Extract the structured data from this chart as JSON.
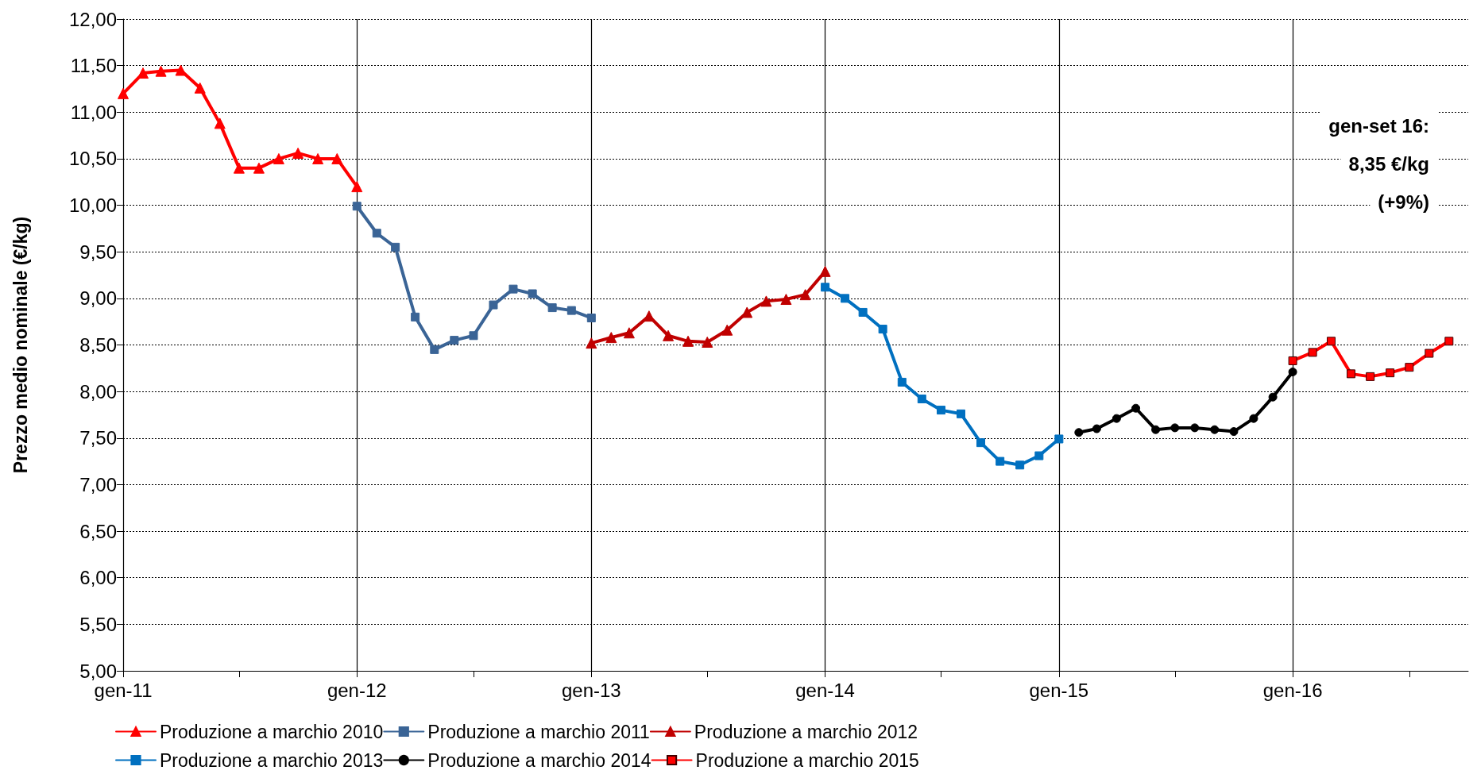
{
  "chart_data": {
    "type": "line",
    "ylabel": "Prezzo medio nominale (€/kg)",
    "xlim": [
      "2011-01",
      "2016-10"
    ],
    "xticks": [
      {
        "value": "2011-01",
        "label": "gen-11"
      },
      {
        "value": "2011-07",
        "label": null
      },
      {
        "value": "2012-01",
        "label": "gen-12"
      },
      {
        "value": "2012-07",
        "label": null
      },
      {
        "value": "2013-01",
        "label": "gen-13"
      },
      {
        "value": "2013-07",
        "label": null
      },
      {
        "value": "2014-01",
        "label": "gen-14"
      },
      {
        "value": "2014-07",
        "label": null
      },
      {
        "value": "2015-01",
        "label": "gen-15"
      },
      {
        "value": "2015-07",
        "label": null
      },
      {
        "value": "2016-01",
        "label": "gen-16"
      },
      {
        "value": "2016-07",
        "label": null
      }
    ],
    "ylim": [
      5,
      12
    ],
    "yticks": [
      {
        "value": 5,
        "label": "5,00"
      },
      {
        "value": 5.5,
        "label": "5,50"
      },
      {
        "value": 6,
        "label": "6,00"
      },
      {
        "value": 6.5,
        "label": "6,50"
      },
      {
        "value": 7,
        "label": "7,00"
      },
      {
        "value": 7.5,
        "label": "7,50"
      },
      {
        "value": 8,
        "label": "8,00"
      },
      {
        "value": 8.5,
        "label": "8,50"
      },
      {
        "value": 9,
        "label": "9,00"
      },
      {
        "value": 9.5,
        "label": "9,50"
      },
      {
        "value": 10,
        "label": "10,00"
      },
      {
        "value": 10.5,
        "label": "10,50"
      },
      {
        "value": 11,
        "label": "11,00"
      },
      {
        "value": 11.5,
        "label": "11,50"
      },
      {
        "value": 12,
        "label": "12,00"
      }
    ],
    "grid": true,
    "legend": "bottom",
    "line_style": "solid",
    "annotations": [
      "gen-set 16:",
      "8,35 €/kg",
      "(+9%)"
    ],
    "series": [
      {
        "name": "Produzione a marchio 2010",
        "color": "#ff0000",
        "marker": "triangle",
        "x": [
          "2011-01",
          "2011-02",
          "2011-03",
          "2011-04",
          "2011-05",
          "2011-06",
          "2011-07",
          "2011-08",
          "2011-09",
          "2011-10",
          "2011-11",
          "2011-12",
          "2012-01"
        ],
        "values": [
          11.2,
          11.42,
          11.44,
          11.45,
          11.26,
          10.88,
          10.4,
          10.4,
          10.5,
          10.56,
          10.5,
          10.5,
          10.2
        ]
      },
      {
        "name": "Produzione a marchio 2011",
        "color": "#3a6496",
        "marker": "square",
        "x": [
          "2012-01",
          "2012-02",
          "2012-03",
          "2012-04",
          "2012-05",
          "2012-06",
          "2012-07",
          "2012-08",
          "2012-09",
          "2012-10",
          "2012-11",
          "2012-12",
          "2013-01"
        ],
        "values": [
          9.99,
          9.7,
          9.55,
          8.8,
          8.45,
          8.55,
          8.6,
          8.93,
          9.1,
          9.05,
          8.9,
          8.87,
          8.79
        ]
      },
      {
        "name": "Produzione a marchio 2012",
        "color": "#c00000",
        "marker": "triangle",
        "x": [
          "2013-01",
          "2013-02",
          "2013-03",
          "2013-04",
          "2013-05",
          "2013-06",
          "2013-07",
          "2013-08",
          "2013-09",
          "2013-10",
          "2013-11",
          "2013-12",
          "2014-01"
        ],
        "values": [
          8.52,
          8.58,
          8.63,
          8.81,
          8.6,
          8.54,
          8.53,
          8.66,
          8.85,
          8.97,
          8.99,
          9.04,
          9.29
        ]
      },
      {
        "name": "Produzione a marchio 2013",
        "color": "#0070c0",
        "marker": "square",
        "x": [
          "2014-01",
          "2014-02",
          "2014-03",
          "2014-04",
          "2014-05",
          "2014-06",
          "2014-07",
          "2014-08",
          "2014-09",
          "2014-10",
          "2014-11",
          "2014-12",
          "2015-01"
        ],
        "values": [
          9.12,
          9.0,
          8.85,
          8.67,
          8.1,
          7.92,
          7.8,
          7.76,
          7.45,
          7.25,
          7.21,
          7.31,
          7.49
        ]
      },
      {
        "name": "Produzione a marchio 2014",
        "color": "#000000",
        "marker": "circle",
        "x": [
          "2015-02",
          "2015-03",
          "2015-04",
          "2015-05",
          "2015-06",
          "2015-07",
          "2015-08",
          "2015-09",
          "2015-10",
          "2015-11",
          "2015-12",
          "2016-01"
        ],
        "values": [
          7.56,
          7.6,
          7.71,
          7.82,
          7.59,
          7.61,
          7.61,
          7.59,
          7.57,
          7.71,
          7.94,
          8.21
        ]
      },
      {
        "name": "Produzione a marchio 2015",
        "color": "#ff0000",
        "marker": "square",
        "x": [
          "2016-01",
          "2016-02",
          "2016-03",
          "2016-04",
          "2016-05",
          "2016-06",
          "2016-07",
          "2016-08",
          "2016-09"
        ],
        "values": [
          8.33,
          8.42,
          8.54,
          8.19,
          8.16,
          8.2,
          8.26,
          8.41,
          8.54
        ]
      }
    ]
  }
}
